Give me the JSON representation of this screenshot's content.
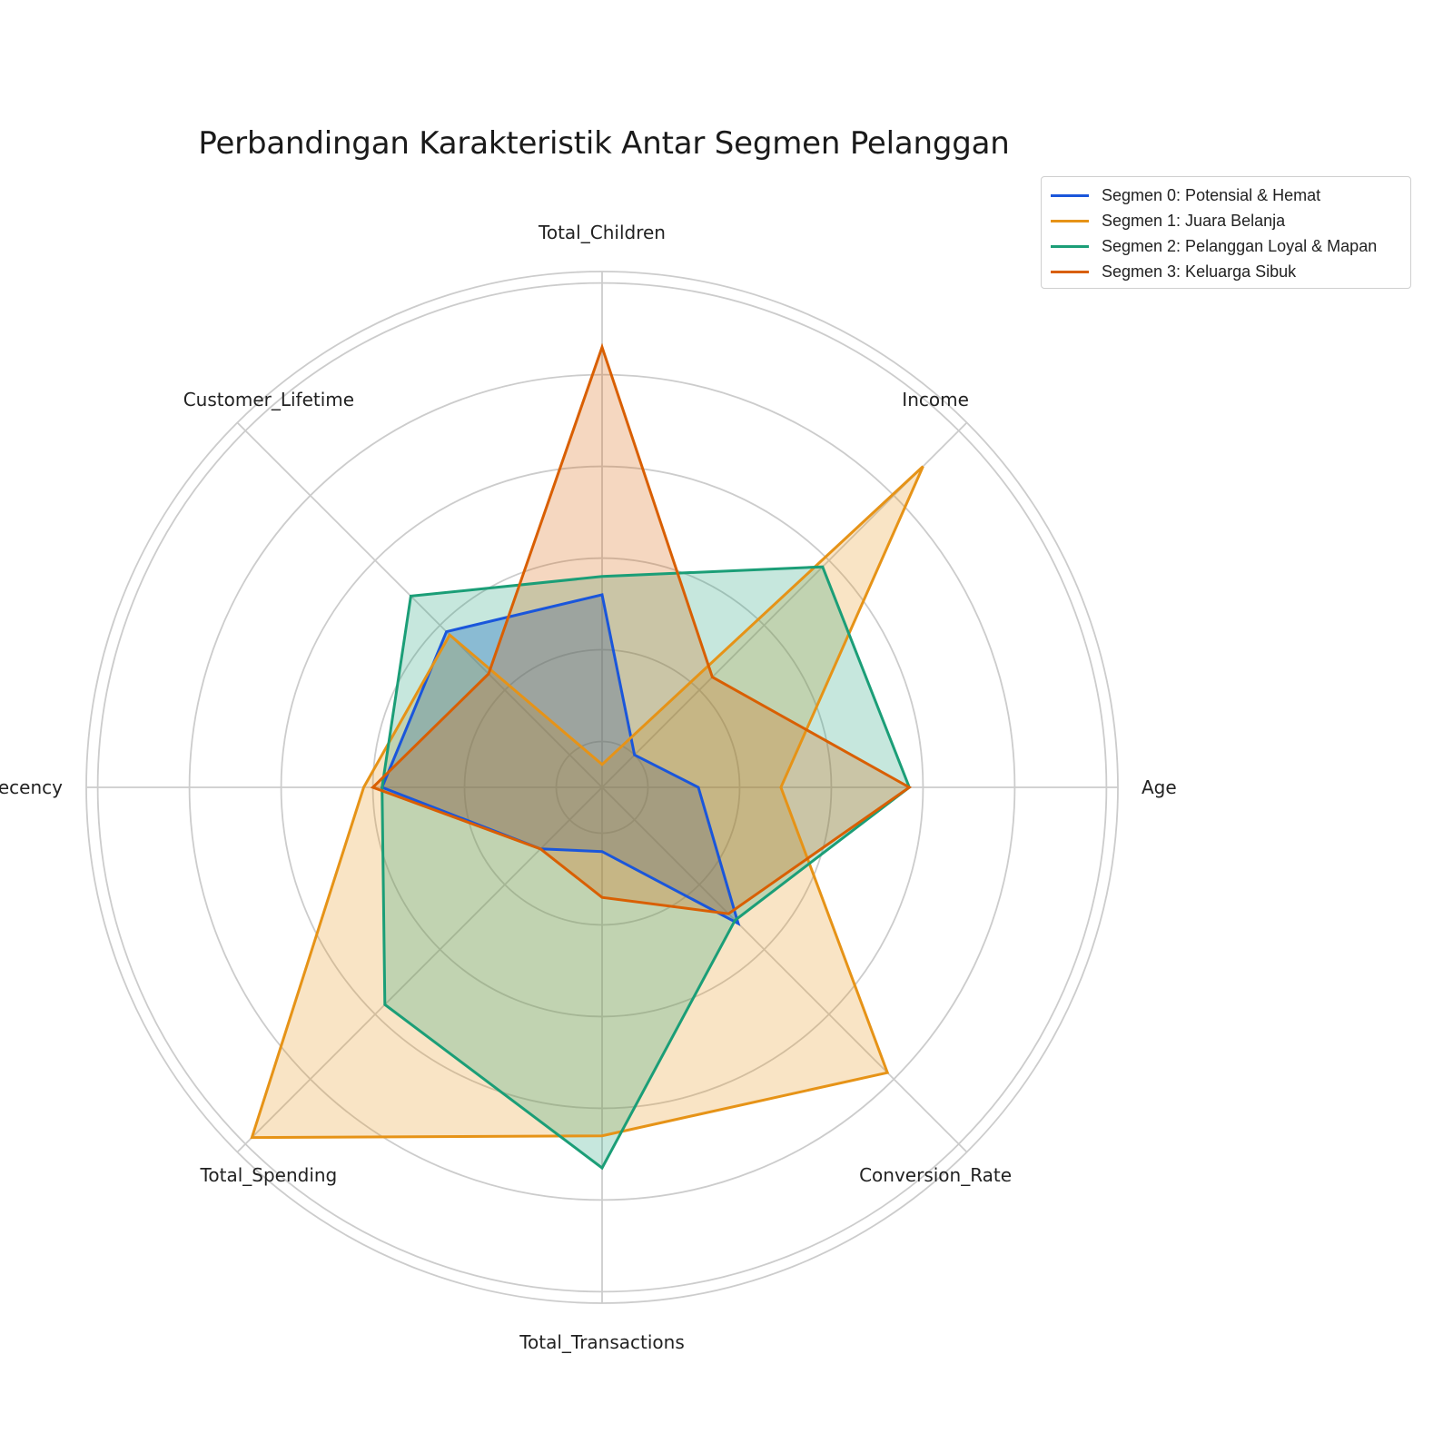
{
  "chart_data": {
    "type": "radar",
    "title": "Perbandingan Karakteristik Antar Segmen Pelanggan",
    "axes": [
      "Total_Children",
      "Income",
      "Age",
      "Conversion_Rate",
      "Total_Transactions",
      "Total_Spending",
      "Recency",
      "Customer_Lifetime"
    ],
    "rlim": [
      0,
      1.125
    ],
    "ring_levels": [
      0.1,
      0.3,
      0.5,
      0.7,
      0.9,
      1.1,
      1.125
    ],
    "grid": true,
    "legend_position": "top-right",
    "series": [
      {
        "name": "Segmen 0: Potensial & Hemat",
        "color": "#1a56db",
        "fill_opacity": 0.35,
        "values": [
          0.42,
          0.1,
          0.21,
          0.42,
          0.14,
          0.19,
          0.48,
          0.48
        ]
      },
      {
        "name": "Segmen 1: Juara Belanja",
        "color": "#e69317",
        "fill_opacity": 0.25,
        "values": [
          0.05,
          0.99,
          0.39,
          0.88,
          0.76,
          1.08,
          0.52,
          0.47
        ]
      },
      {
        "name": "Segmen 2: Pelanggan Loyal & Mapan",
        "color": "#1b9e77",
        "fill_opacity": 0.25,
        "values": [
          0.46,
          0.68,
          0.67,
          0.41,
          0.83,
          0.67,
          0.48,
          0.59
        ]
      },
      {
        "name": "Segmen 3: Keluarga Sibuk",
        "color": "#d95f02",
        "fill_opacity": 0.25,
        "values": [
          0.96,
          0.34,
          0.67,
          0.39,
          0.24,
          0.19,
          0.5,
          0.35
        ]
      }
    ]
  }
}
